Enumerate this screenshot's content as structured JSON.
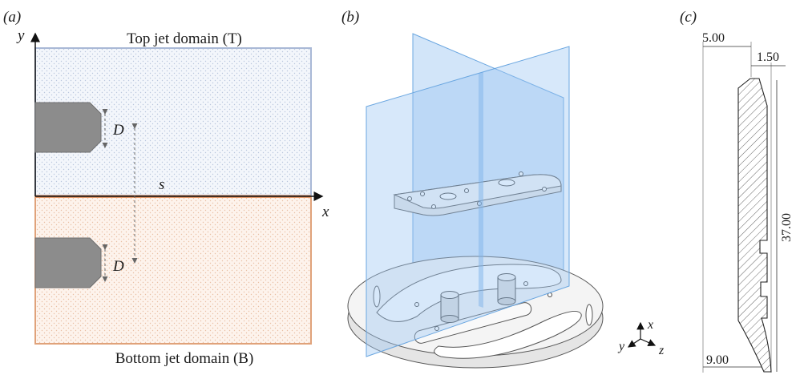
{
  "panels": {
    "a": {
      "label": "(a)",
      "top_title": "Top jet domain (T)",
      "bottom_title": "Bottom jet domain (B)",
      "axis_y": "y",
      "axis_x": "x",
      "dim_d_top": "D",
      "dim_d_bottom": "D",
      "dim_s": "s",
      "colors": {
        "top_border": "#a9b8d6",
        "bottom_border": "#e0a27a",
        "interface": "#e08b55",
        "nozzle": "#8c8c8c",
        "top_fill": "#eef2f8",
        "bottom_fill": "#fbeee4"
      }
    },
    "b": {
      "label": "(b)",
      "axis_x": "x",
      "axis_y": "y",
      "axis_z": "z",
      "colors": {
        "plane": "#9cc6f2",
        "plane_edge": "#6aa6e0"
      }
    },
    "c": {
      "label": "(c)",
      "dim_top_width": "5.00",
      "dim_top_chamfer": "1.50",
      "dim_height": "37.00",
      "dim_bottom_width": "9.00"
    }
  }
}
